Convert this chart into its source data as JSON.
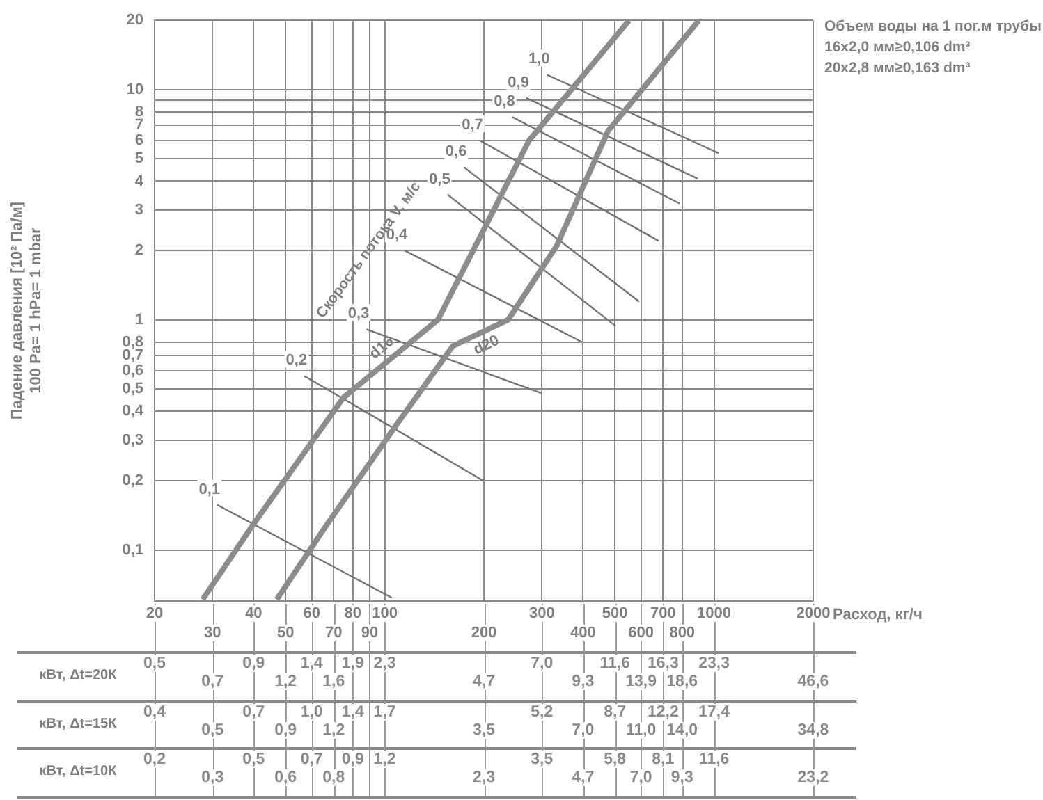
{
  "chart_data": [
    {
      "type": "line",
      "xlabel": "Расход, кг/ч",
      "ylabel": "Падение давления [10² Па/м]\n100 Pa= 1 hPa= 1 mbar",
      "log": "xy",
      "grid": true,
      "tick_labels": "y",
      "legend": false,
      "marker": "none",
      "xlim": [
        20,
        2000
      ],
      "xticks": [
        20,
        30,
        40,
        50,
        60,
        70,
        80,
        90,
        100,
        200,
        300,
        400,
        500,
        600,
        700,
        800,
        1000,
        2000
      ],
      "ylim": [
        0.06,
        20
      ],
      "yticks": [
        {
          "value": 0.1,
          "label": "0,1"
        },
        {
          "value": 0.2,
          "label": "0,2"
        },
        {
          "value": 0.3,
          "label": "0,3"
        },
        {
          "value": 0.4,
          "label": "0,4"
        },
        {
          "value": 0.5,
          "label": "0,5"
        },
        {
          "value": 0.6,
          "label": "0,6"
        },
        {
          "value": 0.7,
          "label": "0,7"
        },
        {
          "value": 0.8,
          "label": "0,8"
        },
        1,
        2,
        3,
        4,
        5,
        6,
        7,
        8,
        {
          "value": 9,
          "label": null
        },
        10,
        20
      ],
      "annotations": [
        "Скорость потока V, м/с",
        "Объем воды на 1 пог.м трубы",
        "16х2,0 мм≥0,106 dm³",
        "20х2,8 мм≥0,163 dm³"
      ],
      "series": [
        {
          "name": "d16",
          "color": "#8c8c8c",
          "x": [
            28,
            40,
            75,
            145,
            274,
            552
          ],
          "values": [
            0.061,
            0.13,
            0.46,
            1,
            6,
            20
          ]
        },
        {
          "name": "d20",
          "color": "#8c8c8c",
          "x": [
            47,
            67,
            107,
            161,
            237,
            333,
            476,
            899
          ],
          "values": [
            0.061,
            0.13,
            0.34,
            0.77,
            1,
            2.1,
            6.6,
            20
          ]
        },
        {
          "name": "0,1",
          "color": "#737373",
          "x": [
            31,
            105
          ],
          "values": [
            0.157,
            0.062
          ]
        },
        {
          "name": "0,2",
          "color": "#737373",
          "x": [
            57,
            199
          ],
          "values": [
            0.57,
            0.2
          ]
        },
        {
          "name": "0,3",
          "color": "#737373",
          "x": [
            88,
            299
          ],
          "values": [
            0.91,
            0.48
          ]
        },
        {
          "name": "0,4",
          "color": "#737373",
          "x": [
            115,
            397
          ],
          "values": [
            2,
            0.8
          ]
        },
        {
          "name": "0,5",
          "color": "#737373",
          "x": [
            155,
            502
          ],
          "values": [
            3.5,
            0.94
          ]
        },
        {
          "name": "0,6",
          "color": "#737373",
          "x": [
            174,
            592
          ],
          "values": [
            4.6,
            1.2
          ]
        },
        {
          "name": "0,7",
          "color": "#737373",
          "x": [
            195,
            679
          ],
          "values": [
            6,
            2.2
          ]
        },
        {
          "name": "0,8",
          "color": "#737373",
          "x": [
            244,
            785
          ],
          "values": [
            7.6,
            3.2
          ]
        },
        {
          "name": "0,9",
          "color": "#737373",
          "x": [
            269,
            892
          ],
          "values": [
            9.2,
            4.1
          ]
        },
        {
          "name": "1,0",
          "color": "#737373",
          "x": [
            311,
            1031
          ],
          "values": [
            11.6,
            5.3
          ]
        }
      ]
    },
    {
      "type": "heatmap",
      "categories": [
        "20",
        "30",
        "40",
        "50",
        "60",
        "70",
        "80",
        "90",
        "100",
        "200",
        "300",
        "400",
        "500",
        "600",
        "700",
        "800",
        "1000",
        "2000"
      ],
      "y_categories": [
        "кВт, Δt=20К",
        "кВт, Δt=15К",
        "кВт, Δt=10К"
      ],
      "cells": [
        [
          0.5,
          0.7,
          0.9,
          1.2,
          1.4,
          1.6,
          1.9,
          null,
          2.3,
          4.7,
          7.0,
          9.3,
          11.6,
          13.9,
          16.3,
          18.6,
          23.3,
          46.6
        ],
        [
          0.4,
          0.5,
          0.7,
          0.9,
          1.0,
          1.2,
          1.4,
          null,
          1.7,
          3.5,
          5.2,
          7.0,
          8.7,
          11.0,
          12.2,
          14.0,
          17.4,
          34.8
        ],
        [
          0.2,
          0.3,
          0.5,
          0.6,
          0.7,
          0.8,
          0.9,
          null,
          1.2,
          2.3,
          3.5,
          4.7,
          5.8,
          7.0,
          8.1,
          9.3,
          11.6,
          23.2
        ]
      ],
      "cell_labels": [
        [
          "0,5",
          "0,7",
          "0,9",
          "1,2",
          "1,4",
          "1,6",
          "1,9",
          null,
          "2,3",
          "4,7",
          "7,0",
          "9,3",
          "11,6",
          "13,9",
          "16,3",
          "18,6",
          "23,3",
          "46,6"
        ],
        [
          "0,4",
          "0,5",
          "0,7",
          "0,9",
          "1,0",
          "1,2",
          "1,4",
          null,
          "1,7",
          "3,5",
          "5,2",
          "7,0",
          "8,7",
          "11,0",
          "12,2",
          "14,0",
          "17,4",
          "34,8"
        ],
        [
          "0,2",
          "0,3",
          "0,5",
          "0,6",
          "0,7",
          "0,8",
          "0,9",
          null,
          "1,2",
          "2,3",
          "3,5",
          "4,7",
          "5,8",
          "7,0",
          "8,1",
          "9,3",
          "11,6",
          "23,2"
        ]
      ]
    }
  ]
}
